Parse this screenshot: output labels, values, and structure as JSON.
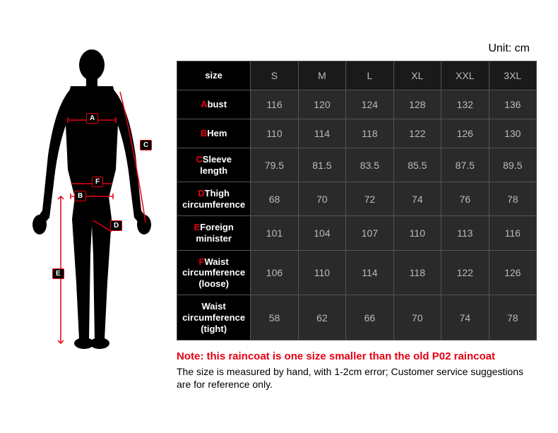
{
  "unit_label": "Unit: cm",
  "table": {
    "size_header": "size",
    "columns": [
      "S",
      "M",
      "L",
      "XL",
      "XXL",
      "3XL"
    ],
    "rows": [
      {
        "letter": "A",
        "label": "bust",
        "values": [
          116,
          120,
          124,
          128,
          132,
          136
        ]
      },
      {
        "letter": "B",
        "label": "Hem",
        "values": [
          110,
          114,
          118,
          122,
          126,
          130
        ]
      },
      {
        "letter": "C",
        "label": "Sleeve length",
        "values": [
          79.5,
          81.5,
          83.5,
          85.5,
          87.5,
          89.5
        ]
      },
      {
        "letter": "D",
        "label": "Thigh circumference",
        "values": [
          68,
          70,
          72,
          74,
          76,
          78
        ]
      },
      {
        "letter": "E",
        "label": "Foreign minister",
        "values": [
          101,
          104,
          107,
          110,
          113,
          116
        ]
      },
      {
        "letter": "F",
        "label": "Waist circumference (loose)",
        "values": [
          106,
          110,
          114,
          118,
          122,
          126
        ]
      },
      {
        "letter": "",
        "label": "Waist circumference (tight)",
        "values": [
          58,
          62,
          66,
          70,
          74,
          78
        ]
      }
    ],
    "header_bg": "#000000",
    "header_fg": "#ffffff",
    "colhead_bg": "#1a1a1a",
    "cell_bg": "#2a2a2a",
    "cell_fg": "#bbbbbb",
    "border_color": "#555555",
    "letter_color": "#e60012"
  },
  "notes": {
    "red": "Note: this raincoat is one size smaller than the old P02 raincoat",
    "black": "The size is measured by hand, with 1-2cm error; Customer service suggestions are for reference only."
  },
  "diagram": {
    "labels": [
      "A",
      "B",
      "C",
      "D",
      "E",
      "F"
    ],
    "line_color": "#e60012",
    "silhouette_color": "#000000"
  }
}
